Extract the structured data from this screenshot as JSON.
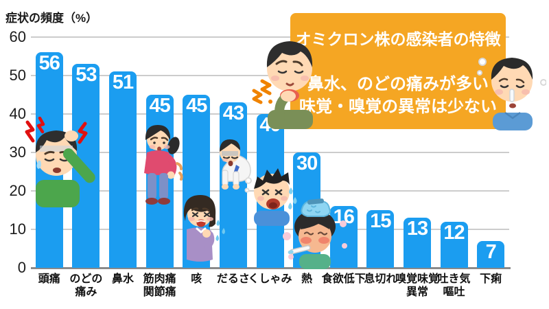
{
  "chart_data": {
    "type": "bar",
    "title": "症状の頻度（%）",
    "categories": [
      "頭痛",
      "のどの痛み",
      "鼻水",
      "筋肉痛関節痛",
      "咳",
      "だるさ",
      "くしゃみ",
      "熱",
      "食欲低下",
      "息切れ",
      "嗅覚味覚異常",
      "吐き気嘔吐",
      "下痢"
    ],
    "category_lines": [
      [
        "頭痛"
      ],
      [
        "のどの",
        "痛み"
      ],
      [
        "鼻水"
      ],
      [
        "筋肉痛",
        "関節痛"
      ],
      [
        "咳"
      ],
      [
        "だるさ"
      ],
      [
        "くしゃみ"
      ],
      [
        "熱"
      ],
      [
        "食欲低下"
      ],
      [
        "息切れ"
      ],
      [
        "嗅覚味覚",
        "異常"
      ],
      [
        "吐き気",
        "嘔吐"
      ],
      [
        "下痢"
      ]
    ],
    "values": [
      56,
      53,
      51,
      45,
      45,
      43,
      40,
      30,
      16,
      15,
      13,
      12,
      7
    ],
    "xlabel": "",
    "ylabel": "症状の頻度（%）",
    "ylim": [
      0,
      60
    ],
    "yticks": [
      0,
      10,
      20,
      30,
      40,
      50,
      60
    ],
    "grid": true,
    "legend": null,
    "bar_color": "#1b9df0",
    "grid_color": "#cccccc",
    "axis_color": "#8a8a8a",
    "value_label_color": "#ffffff"
  },
  "callout": {
    "title": "オミクロン株の感染者の特徴",
    "line1": "鼻水、のどの痛みが多い",
    "line2": "味覚・嗅覚の異常は少ない",
    "background": "#f5a623",
    "text_color": "#ffffff"
  },
  "illustrations": [
    {
      "name": "headache-man-illustration",
      "depicts": "頭痛"
    },
    {
      "name": "back-pain-woman-illustration",
      "depicts": "筋肉痛関節痛"
    },
    {
      "name": "fatigued-man-illustration",
      "depicts": "だるさ"
    },
    {
      "name": "coughing-woman-illustration",
      "depicts": "咳"
    },
    {
      "name": "sneezing-man-illustration",
      "depicts": "くしゃみ"
    },
    {
      "name": "sore-throat-man-illustration",
      "depicts": "のどの痛み"
    },
    {
      "name": "fever-woman-illustration",
      "depicts": "熱"
    },
    {
      "name": "runny-nose-boy-illustration",
      "depicts": "鼻水"
    }
  ]
}
